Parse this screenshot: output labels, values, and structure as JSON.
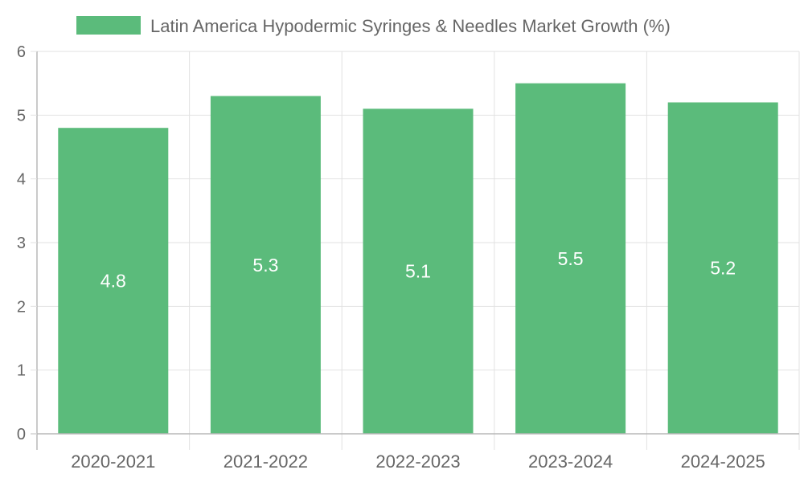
{
  "colors": {
    "bar": "#5bbb7b"
  },
  "chart_data": {
    "type": "bar",
    "legend": "Latin America Hypodermic Syringes & Needles Market Growth (%)",
    "legend_position": "top-center",
    "categories": [
      "2020-2021",
      "2021-2022",
      "2022-2023",
      "2023-2024",
      "2024-2025"
    ],
    "series": [
      {
        "name": "Latin America Hypodermic Syringes & Needles Market Growth (%)",
        "values": [
          4.8,
          5.3,
          5.1,
          5.5,
          5.2
        ]
      }
    ],
    "data_labels": [
      "4.8",
      "5.3",
      "5.1",
      "5.5",
      "5.2"
    ],
    "y_ticks": [
      "0",
      "1",
      "2",
      "3",
      "4",
      "5",
      "6"
    ],
    "ylim": [
      0,
      6
    ],
    "grid": true,
    "title": "",
    "xlabel": "",
    "ylabel": ""
  }
}
